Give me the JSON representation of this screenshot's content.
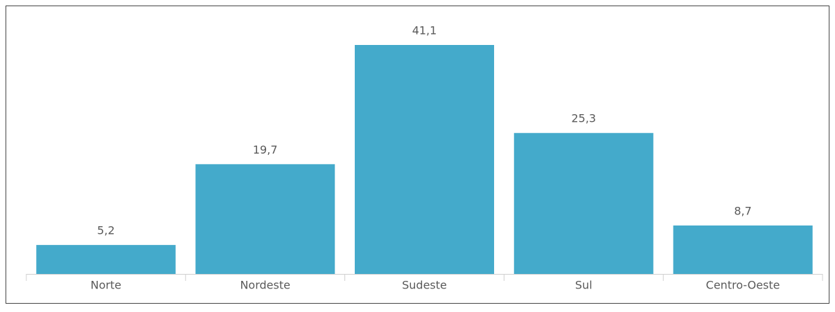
{
  "chart_data": {
    "type": "bar",
    "categories": [
      "Norte",
      "Nordeste",
      "Sudeste",
      "Sul",
      "Centro-Oeste"
    ],
    "values": [
      5.2,
      19.7,
      41.1,
      25.3,
      8.7
    ],
    "value_labels": [
      "5,2",
      "19,7",
      "41,1",
      "25,3",
      "8,7"
    ],
    "color": "#44aacb"
  }
}
